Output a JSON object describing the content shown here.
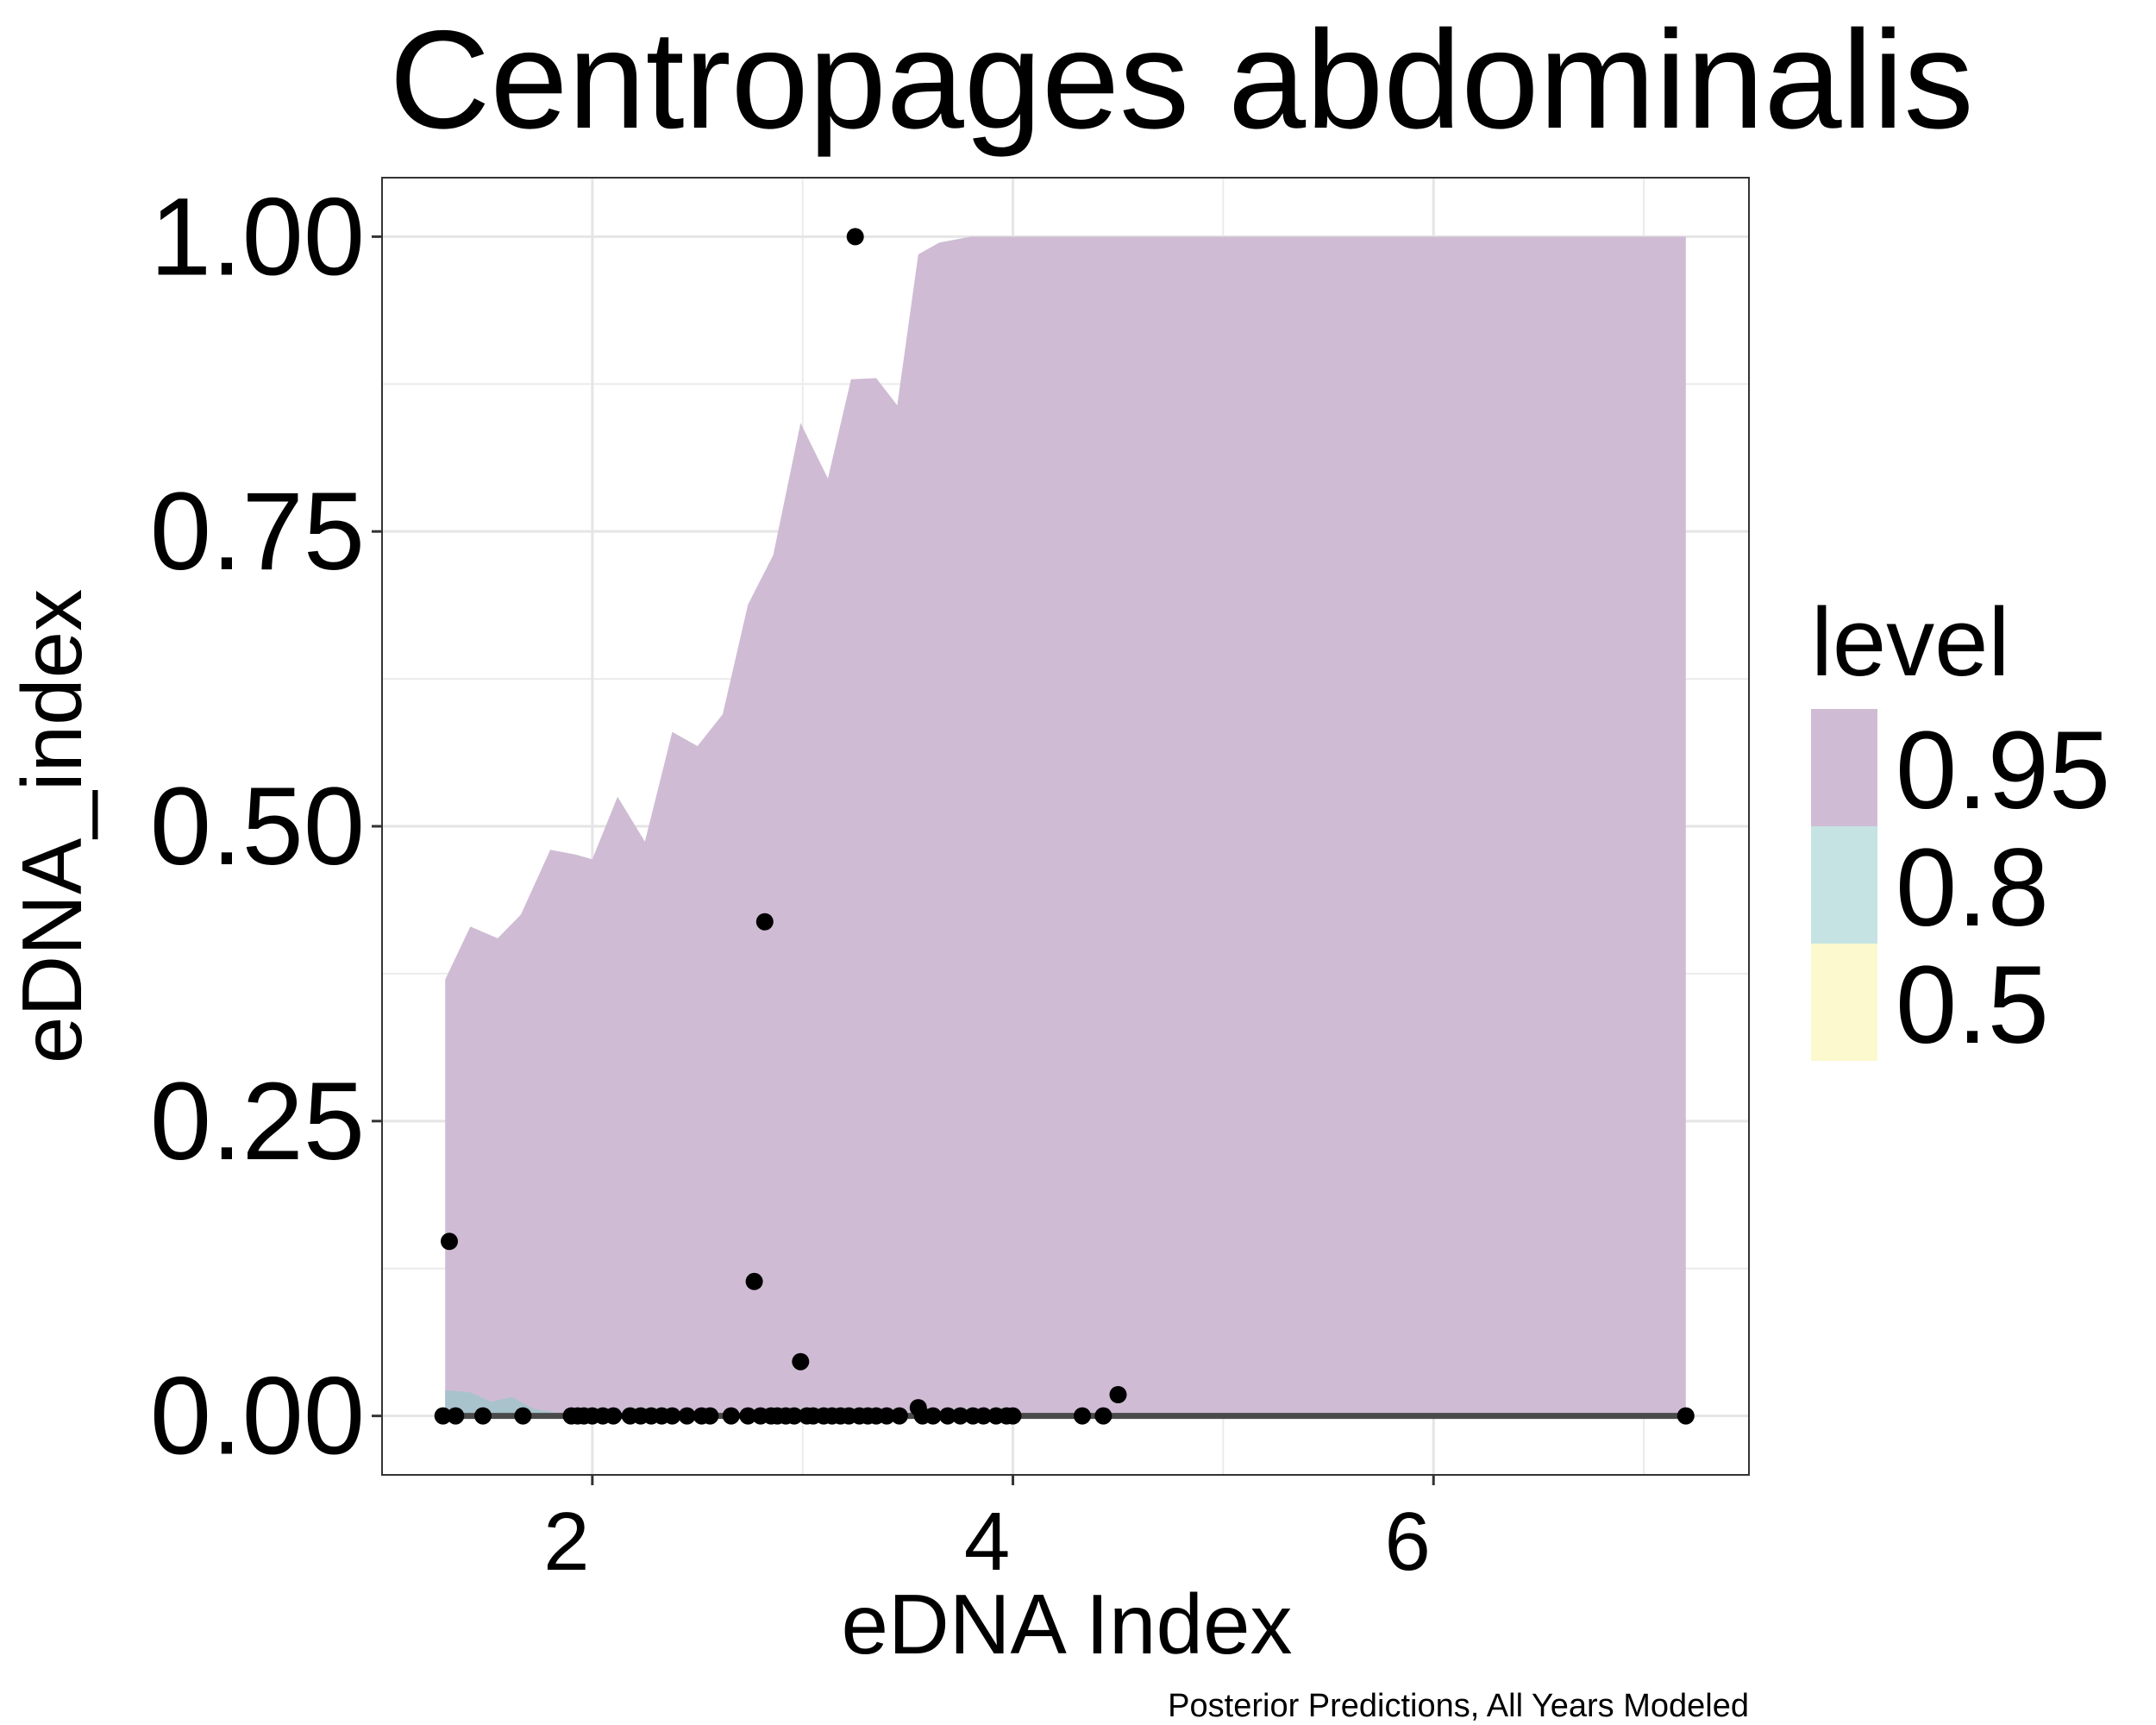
{
  "chart_data": {
    "type": "area",
    "title": "Centropages abdominalis",
    "xlabel": "eDNA Index",
    "ylabel": "eDNA_index",
    "caption": "Posterior Predictions, All Years Modeled",
    "xlim": [
      1.0,
      7.5
    ],
    "ylim": [
      -0.05,
      1.05
    ],
    "x_ticks": [
      2,
      4,
      6
    ],
    "x_tick_labels": [
      "2",
      "4",
      "6"
    ],
    "y_ticks": [
      0,
      0.25,
      0.5,
      0.75,
      1.0
    ],
    "y_tick_labels": [
      "0.00",
      "0.25",
      "0.50",
      "0.75",
      "1.00"
    ],
    "grid": true,
    "legend": {
      "title": "level",
      "position": "right",
      "entries": [
        {
          "label": "0.95",
          "color": "#cfbcd4"
        },
        {
          "label": "0.8",
          "color": "#c5e3e2"
        },
        {
          "label": "0.5",
          "color": "#fbf9cd"
        }
      ]
    },
    "series": [
      {
        "level": "0.95",
        "color": "#cfbcd4",
        "x": [
          1.3,
          1.42,
          1.55,
          1.66,
          1.8,
          1.92,
          2.0,
          2.12,
          2.25,
          2.38,
          2.5,
          2.62,
          2.74,
          2.86,
          2.99,
          3.12,
          3.23,
          3.35,
          3.45,
          3.55,
          3.65,
          3.8,
          3.93,
          4.1,
          5.0,
          6.0,
          7.2
        ],
        "lower": [
          0,
          0,
          0,
          0,
          0,
          0,
          0,
          0,
          0,
          0,
          0,
          0,
          0,
          0,
          0,
          0,
          0,
          0,
          0,
          0,
          0,
          0,
          0,
          0,
          0,
          0,
          0
        ],
        "upper": [
          0.37,
          0.415,
          0.405,
          0.425,
          0.48,
          0.476,
          0.472,
          0.525,
          0.487,
          0.58,
          0.568,
          0.595,
          0.688,
          0.73,
          0.842,
          0.795,
          0.879,
          0.88,
          0.857,
          0.985,
          0.995,
          1.0,
          1.0,
          1.0,
          1.0,
          1.0,
          1.0
        ]
      },
      {
        "level": "0.8",
        "color": "#c5e3e2",
        "x": [
          1.3,
          1.42,
          1.52,
          1.62,
          1.72,
          1.85,
          3.0,
          5.0,
          7.2
        ],
        "lower": [
          0,
          0,
          0,
          0,
          0,
          0,
          0,
          0,
          0
        ],
        "upper": [
          0.022,
          0.02,
          0.012,
          0.016,
          0.006,
          0.002,
          0.001,
          0.001,
          0.001
        ]
      },
      {
        "level": "0.5",
        "color": "#fbf9cd",
        "x": [
          1.3,
          7.2
        ],
        "lower": [
          0,
          0
        ],
        "upper": [
          0.001,
          0.001
        ]
      },
      {
        "name": "median",
        "type": "line",
        "x": [
          1.3,
          7.2
        ],
        "y": [
          0,
          0
        ]
      },
      {
        "name": "observed",
        "type": "scatter",
        "x": [
          1.29,
          1.32,
          1.35,
          1.48,
          1.67,
          1.9,
          1.93,
          1.96,
          2.0,
          2.05,
          2.1,
          2.18,
          2.23,
          2.28,
          2.33,
          2.38,
          2.45,
          2.52,
          2.56,
          2.66,
          2.74,
          2.77,
          2.8,
          2.82,
          2.85,
          2.88,
          2.92,
          2.96,
          2.99,
          3.02,
          3.05,
          3.1,
          3.14,
          3.18,
          3.22,
          3.25,
          3.27,
          3.31,
          3.35,
          3.4,
          3.46,
          3.55,
          3.57,
          3.62,
          3.69,
          3.75,
          3.81,
          3.86,
          3.92,
          3.97,
          4.0,
          4.33,
          4.43,
          4.5,
          7.2
        ],
        "y": [
          0,
          0.148,
          0,
          0,
          0,
          0,
          0,
          0,
          0,
          0,
          0,
          0,
          0,
          0,
          0,
          0,
          0,
          0,
          0,
          0,
          0,
          0.114,
          0,
          0.419,
          0,
          0,
          0,
          0,
          0.046,
          0,
          0,
          0,
          0,
          0,
          0,
          1.0,
          0,
          0,
          0,
          0,
          0,
          0.007,
          0,
          0,
          0,
          0,
          0,
          0,
          0,
          0,
          0,
          0,
          0,
          0.018,
          0
        ]
      }
    ]
  }
}
